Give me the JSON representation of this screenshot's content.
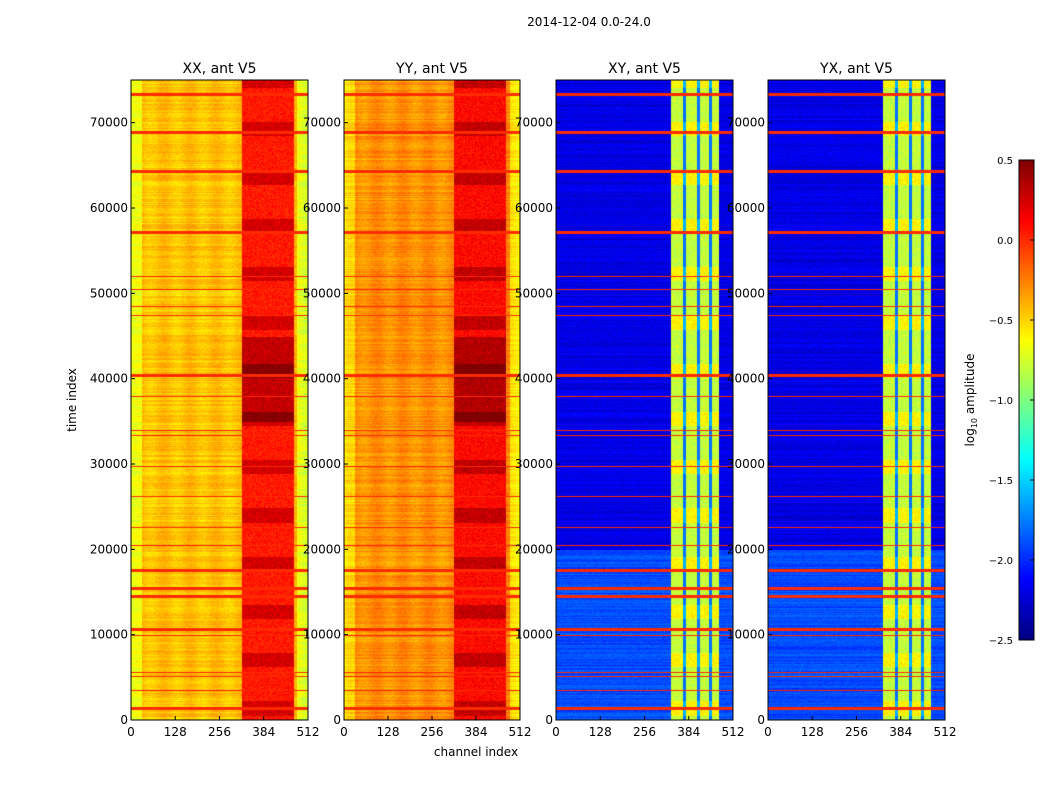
{
  "chart_data": {
    "type": "heatmap",
    "suptitle": "2014-12-04 0.0-24.0",
    "xlabel": "channel index",
    "ylabel": "time index",
    "xlim": [
      0,
      512
    ],
    "ylim": [
      0,
      75000
    ],
    "xticks": [
      "0",
      "128",
      "256",
      "384",
      "512"
    ],
    "yticks": [
      "0",
      "10000",
      "20000",
      "30000",
      "40000",
      "50000",
      "60000",
      "70000"
    ],
    "yticks_values": [
      0,
      10000,
      20000,
      30000,
      40000,
      50000,
      60000,
      70000
    ],
    "xticks_values": [
      0,
      128,
      256,
      384,
      512
    ],
    "colormap": "jet",
    "colorbar": {
      "label": "log10 amplitude",
      "label_main": "log",
      "label_sub": "10",
      "label_rest": " amplitude",
      "range": [
        -2.5,
        0.5
      ],
      "ticks": [
        "0.5",
        "0.0",
        "−0.5",
        "−1.0",
        "−1.5",
        "−2.0",
        "−2.5"
      ],
      "tick_values": [
        0.5,
        0.0,
        -0.5,
        -1.0,
        -1.5,
        -2.0,
        -2.5
      ]
    },
    "flagged_time_rows": [
      1500,
      3500,
      5200,
      5600,
      10000,
      10800,
      14700,
      15600,
      17700,
      20500,
      22600,
      26200,
      29800,
      33400,
      34000,
      38000,
      40500,
      47500,
      48500,
      50500,
      52000,
      57300,
      64500,
      69000,
      73500
    ],
    "flag_level": 0.0,
    "panels": [
      {
        "title": "XX, ant V5",
        "background_level": -0.45,
        "band_channels": [
          320,
          470
        ],
        "band_level": 0.05
      },
      {
        "title": "YY, ant V5",
        "background_level": -0.3,
        "band_channels": [
          320,
          470
        ],
        "band_level": 0.1
      },
      {
        "title": "XY, ant V5",
        "background_level": -2.2,
        "band_channels": [
          330,
          470
        ],
        "band_level": -0.8
      },
      {
        "title": "YX, ant V5",
        "background_level": -2.2,
        "band_channels": [
          330,
          470
        ],
        "band_level": -0.8
      }
    ]
  }
}
